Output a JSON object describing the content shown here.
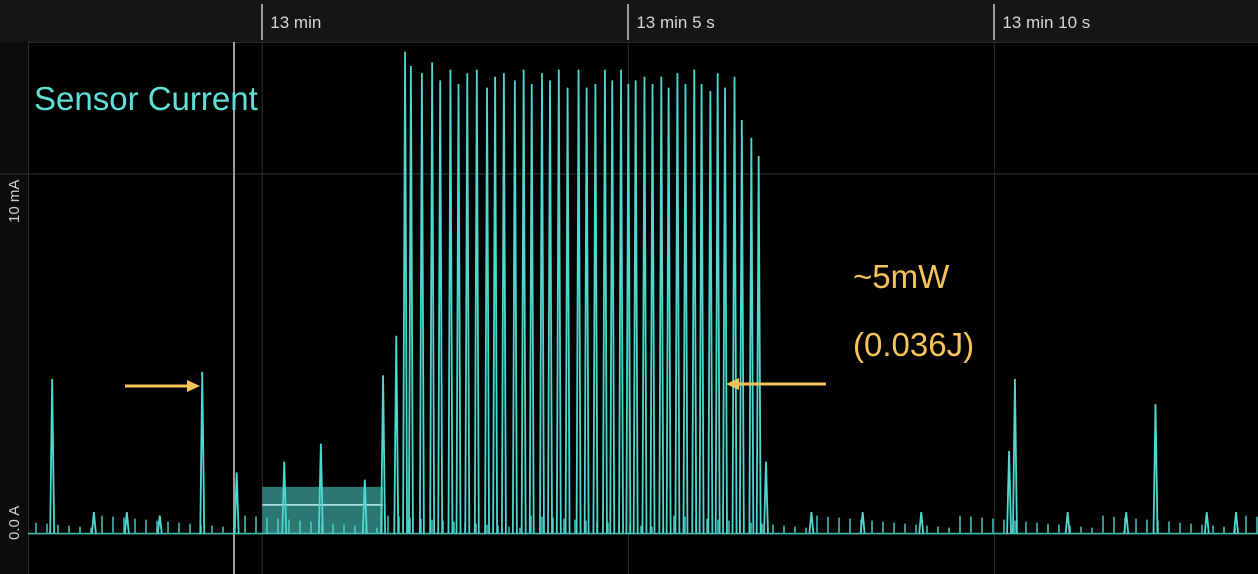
{
  "timeline": {
    "ticks": [
      {
        "label": "13 min",
        "t": 0
      },
      {
        "label": "13 min 5 s",
        "t": 5
      },
      {
        "label": "13 min 10 s",
        "t": 10
      }
    ]
  },
  "chart_data": {
    "type": "line",
    "title": "Sensor Current",
    "ylabel": "",
    "xlabel": "",
    "x_unit": "s",
    "x_range": [
      -3.2,
      13.6
    ],
    "ylim_mA": [
      -0.4,
      13.5
    ],
    "y_ticks": [
      {
        "label": "0.0 A",
        "value": 0.0
      },
      {
        "label": "10 mA",
        "value": 10.0
      }
    ],
    "grid": true,
    "trace_color": "#4fd8d0",
    "annotation_color": "#f8c45a",
    "baseline_mA": 0.0,
    "spikes": [
      {
        "t": -2.87,
        "mA": 4.3
      },
      {
        "t": -2.3,
        "mA": 0.6
      },
      {
        "t": -1.85,
        "mA": 0.6
      },
      {
        "t": -1.4,
        "mA": 0.5
      },
      {
        "t": -0.82,
        "mA": 4.5
      },
      {
        "t": -0.35,
        "mA": 1.7
      },
      {
        "t": 0.3,
        "mA": 2.0
      },
      {
        "t": 0.8,
        "mA": 2.5
      },
      {
        "t": 1.4,
        "mA": 1.5
      },
      {
        "t": 1.65,
        "mA": 4.4
      },
      {
        "t": 1.83,
        "mA": 5.5
      },
      {
        "t": 1.95,
        "mA": 13.4
      },
      {
        "t": 2.03,
        "mA": 13.0
      },
      {
        "t": 2.18,
        "mA": 12.8
      },
      {
        "t": 2.32,
        "mA": 13.1
      },
      {
        "t": 2.43,
        "mA": 12.6
      },
      {
        "t": 2.57,
        "mA": 12.9
      },
      {
        "t": 2.68,
        "mA": 12.5
      },
      {
        "t": 2.8,
        "mA": 12.8
      },
      {
        "t": 2.93,
        "mA": 12.9
      },
      {
        "t": 3.07,
        "mA": 12.4
      },
      {
        "t": 3.18,
        "mA": 12.7
      },
      {
        "t": 3.3,
        "mA": 12.8
      },
      {
        "t": 3.45,
        "mA": 12.6
      },
      {
        "t": 3.57,
        "mA": 12.9
      },
      {
        "t": 3.68,
        "mA": 12.5
      },
      {
        "t": 3.82,
        "mA": 12.8
      },
      {
        "t": 3.93,
        "mA": 12.6
      },
      {
        "t": 4.05,
        "mA": 12.9
      },
      {
        "t": 4.17,
        "mA": 12.4
      },
      {
        "t": 4.32,
        "mA": 12.9
      },
      {
        "t": 4.43,
        "mA": 12.4
      },
      {
        "t": 4.55,
        "mA": 12.5
      },
      {
        "t": 4.68,
        "mA": 12.9
      },
      {
        "t": 4.78,
        "mA": 12.6
      },
      {
        "t": 4.9,
        "mA": 12.9
      },
      {
        "t": 5.0,
        "mA": 12.5
      },
      {
        "t": 5.1,
        "mA": 12.6
      },
      {
        "t": 5.22,
        "mA": 12.7
      },
      {
        "t": 5.33,
        "mA": 12.5
      },
      {
        "t": 5.45,
        "mA": 12.7
      },
      {
        "t": 5.55,
        "mA": 12.4
      },
      {
        "t": 5.67,
        "mA": 12.8
      },
      {
        "t": 5.78,
        "mA": 12.5
      },
      {
        "t": 5.9,
        "mA": 12.9
      },
      {
        "t": 6.0,
        "mA": 12.5
      },
      {
        "t": 6.12,
        "mA": 12.3
      },
      {
        "t": 6.22,
        "mA": 12.8
      },
      {
        "t": 6.32,
        "mA": 12.4
      },
      {
        "t": 6.45,
        "mA": 12.7
      },
      {
        "t": 6.55,
        "mA": 11.5
      },
      {
        "t": 6.68,
        "mA": 11.0
      },
      {
        "t": 6.78,
        "mA": 10.5
      },
      {
        "t": 6.88,
        "mA": 2.0
      },
      {
        "t": 7.5,
        "mA": 0.6
      },
      {
        "t": 8.2,
        "mA": 0.6
      },
      {
        "t": 9.0,
        "mA": 0.6
      },
      {
        "t": 10.2,
        "mA": 2.3
      },
      {
        "t": 10.28,
        "mA": 4.3
      },
      {
        "t": 11.0,
        "mA": 0.6
      },
      {
        "t": 11.8,
        "mA": 0.6
      },
      {
        "t": 12.2,
        "mA": 3.6
      },
      {
        "t": 12.9,
        "mA": 0.6
      },
      {
        "t": 13.3,
        "mA": 0.6
      }
    ],
    "active_band": {
      "t_start": 0.0,
      "t_end": 1.65,
      "level_mA": 0.8,
      "top_mA": 1.3
    }
  },
  "annotations": {
    "title": "Sensor Current",
    "power": "~5mW",
    "energy": "(0.036J)"
  }
}
